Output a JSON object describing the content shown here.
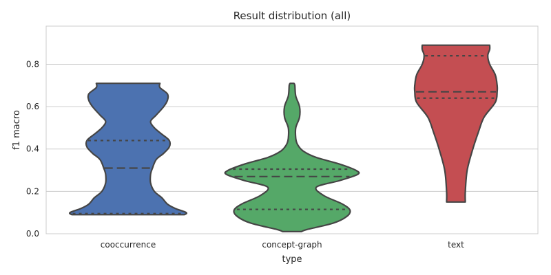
{
  "chart_data": {
    "type": "violin",
    "title": "Result distribution (all)",
    "xlabel": "type",
    "ylabel": "f1 macro",
    "ylim": [
      0,
      0.98
    ],
    "yticks": [
      "0.0",
      "0.2",
      "0.4",
      "0.6",
      "0.8"
    ],
    "grid": true,
    "series": [
      {
        "category": "cooccurrence",
        "color": "#4c72b0",
        "min": 0.09,
        "max": 0.71,
        "q1": 0.095,
        "median": 0.31,
        "q3": 0.44,
        "density": [
          [
            0.09,
            0.3
          ],
          [
            0.1,
            0.31
          ],
          [
            0.12,
            0.25
          ],
          [
            0.14,
            0.21
          ],
          [
            0.17,
            0.18
          ],
          [
            0.2,
            0.14
          ],
          [
            0.24,
            0.12
          ],
          [
            0.28,
            0.12
          ],
          [
            0.31,
            0.13
          ],
          [
            0.35,
            0.15
          ],
          [
            0.38,
            0.19
          ],
          [
            0.41,
            0.22
          ],
          [
            0.44,
            0.22
          ],
          [
            0.47,
            0.18
          ],
          [
            0.5,
            0.14
          ],
          [
            0.53,
            0.12
          ],
          [
            0.56,
            0.15
          ],
          [
            0.6,
            0.19
          ],
          [
            0.63,
            0.21
          ],
          [
            0.66,
            0.21
          ],
          [
            0.69,
            0.17
          ],
          [
            0.71,
            0.17
          ]
        ]
      },
      {
        "category": "concept-graph",
        "color": "#55a868",
        "min": 0.01,
        "max": 0.71,
        "q1": 0.115,
        "median": 0.27,
        "q3": 0.305,
        "density": [
          [
            0.01,
            0.05
          ],
          [
            0.02,
            0.08
          ],
          [
            0.05,
            0.22
          ],
          [
            0.08,
            0.29
          ],
          [
            0.11,
            0.31
          ],
          [
            0.14,
            0.27
          ],
          [
            0.18,
            0.17
          ],
          [
            0.22,
            0.13
          ],
          [
            0.25,
            0.25
          ],
          [
            0.28,
            0.35
          ],
          [
            0.3,
            0.34
          ],
          [
            0.33,
            0.25
          ],
          [
            0.36,
            0.13
          ],
          [
            0.39,
            0.06
          ],
          [
            0.42,
            0.03
          ],
          [
            0.45,
            0.02
          ],
          [
            0.5,
            0.02
          ],
          [
            0.55,
            0.04
          ],
          [
            0.6,
            0.04
          ],
          [
            0.65,
            0.02
          ],
          [
            0.7,
            0.015
          ],
          [
            0.71,
            0.01
          ]
        ]
      },
      {
        "category": "text",
        "color": "#c44e52",
        "min": 0.15,
        "max": 0.89,
        "q1": 0.64,
        "median": 0.67,
        "q3": 0.84,
        "density": [
          [
            0.15,
            0.05
          ],
          [
            0.2,
            0.05
          ],
          [
            0.3,
            0.06
          ],
          [
            0.4,
            0.09
          ],
          [
            0.48,
            0.12
          ],
          [
            0.55,
            0.15
          ],
          [
            0.62,
            0.21
          ],
          [
            0.67,
            0.22
          ],
          [
            0.7,
            0.22
          ],
          [
            0.75,
            0.21
          ],
          [
            0.8,
            0.18
          ],
          [
            0.84,
            0.17
          ],
          [
            0.87,
            0.18
          ],
          [
            0.89,
            0.18
          ]
        ]
      }
    ]
  }
}
